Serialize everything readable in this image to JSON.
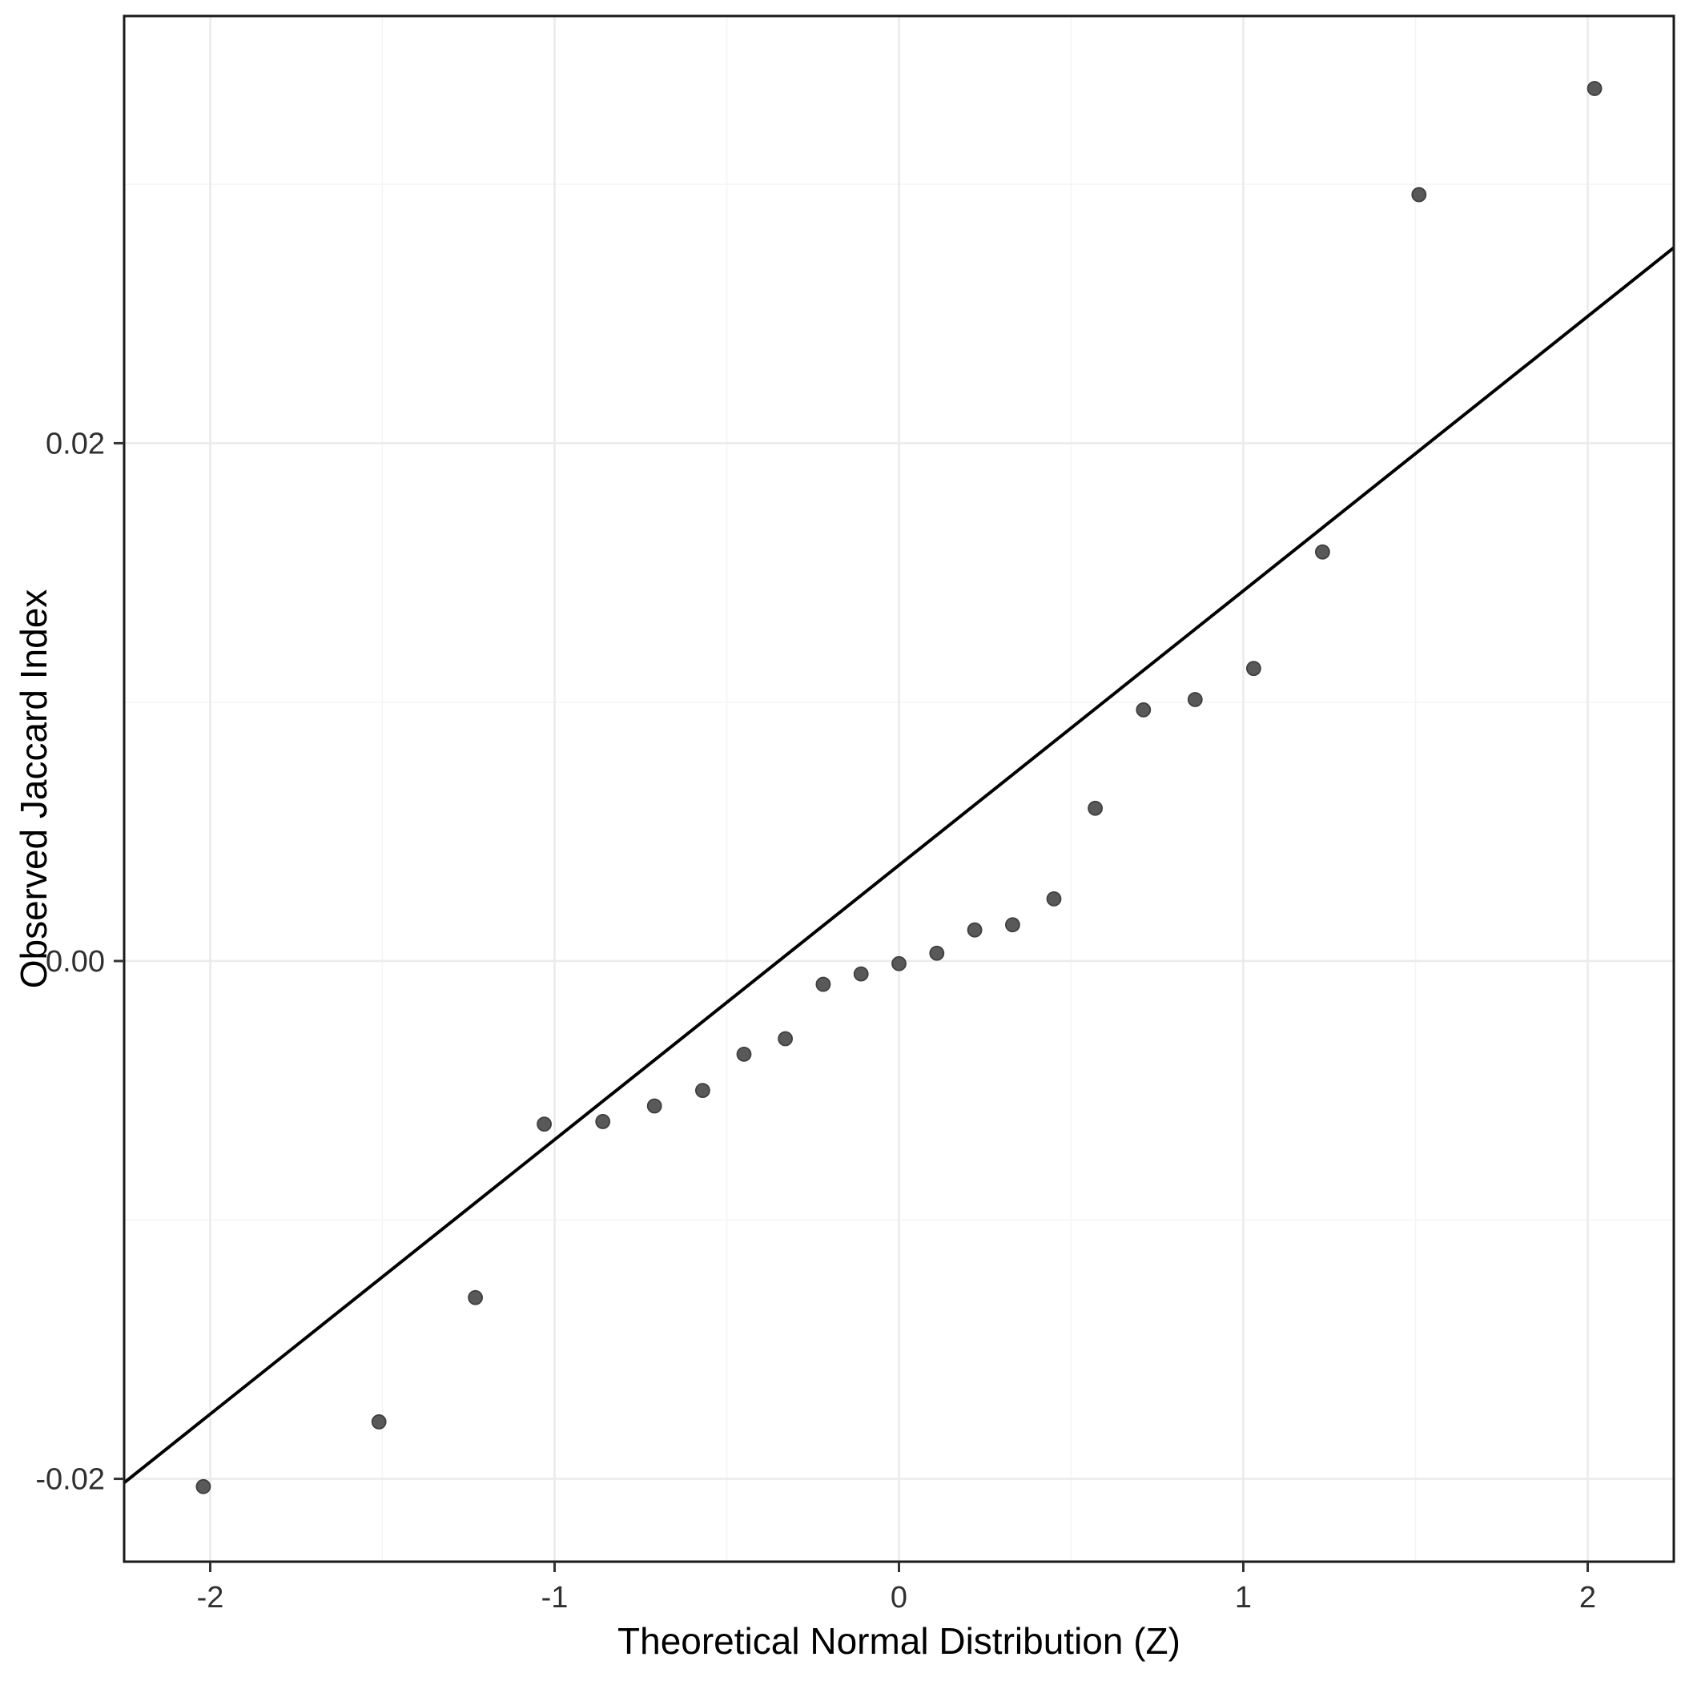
{
  "chart_data": {
    "type": "scatter",
    "title": "",
    "xlabel": "Theoretical Normal Distribution (Z)",
    "ylabel": "Observed Jaccard Index",
    "xlim": [
      -2.25,
      2.25
    ],
    "ylim": [
      -0.0232,
      0.0365
    ],
    "x_ticks": [
      -2,
      -1,
      0,
      1,
      2
    ],
    "x_tick_labels": [
      "-2",
      "-1",
      "0",
      "1",
      "2"
    ],
    "x_minor_ticks": [
      -1.5,
      -0.5,
      0.5,
      1.5
    ],
    "y_ticks": [
      -0.02,
      0,
      0.02
    ],
    "y_tick_labels": [
      "-0.02",
      "0.00",
      "0.02"
    ],
    "y_minor_ticks": [
      -0.03,
      -0.01,
      0.01,
      0.03
    ],
    "grid": true,
    "legend_position": "none",
    "points": [
      {
        "z": -2.02,
        "jaccard": -0.0203
      },
      {
        "z": -1.51,
        "jaccard": -0.0178
      },
      {
        "z": -1.23,
        "jaccard": -0.013
      },
      {
        "z": -1.03,
        "jaccard": -0.0063
      },
      {
        "z": -0.86,
        "jaccard": -0.0062
      },
      {
        "z": -0.71,
        "jaccard": -0.0056
      },
      {
        "z": -0.57,
        "jaccard": -0.005
      },
      {
        "z": -0.45,
        "jaccard": -0.0036
      },
      {
        "z": -0.33,
        "jaccard": -0.003
      },
      {
        "z": -0.22,
        "jaccard": -0.0009
      },
      {
        "z": -0.11,
        "jaccard": -0.0005
      },
      {
        "z": 0.0,
        "jaccard": -0.0001
      },
      {
        "z": 0.11,
        "jaccard": 0.0003
      },
      {
        "z": 0.22,
        "jaccard": 0.0012
      },
      {
        "z": 0.33,
        "jaccard": 0.0014
      },
      {
        "z": 0.45,
        "jaccard": 0.0024
      },
      {
        "z": 0.57,
        "jaccard": 0.0059
      },
      {
        "z": 0.71,
        "jaccard": 0.0097
      },
      {
        "z": 0.86,
        "jaccard": 0.0101
      },
      {
        "z": 1.03,
        "jaccard": 0.0113
      },
      {
        "z": 1.23,
        "jaccard": 0.0158
      },
      {
        "z": 1.51,
        "jaccard": 0.0296
      },
      {
        "z": 2.02,
        "jaccard": 0.0337
      }
    ],
    "reference_line": {
      "slope": 0.0106,
      "intercept": 0.0037
    },
    "style": {
      "background": "#ffffff",
      "panel_background": "#ffffff",
      "panel_border_color": "#1a1a1a",
      "grid_major_color": "#ebebeb",
      "grid_minor_color": "#f5f5f5",
      "point_color": "#595959",
      "point_stroke": "#3f3f3f",
      "line_color": "#000000",
      "tick_color": "#333333",
      "tick_label_color": "#303030"
    }
  }
}
